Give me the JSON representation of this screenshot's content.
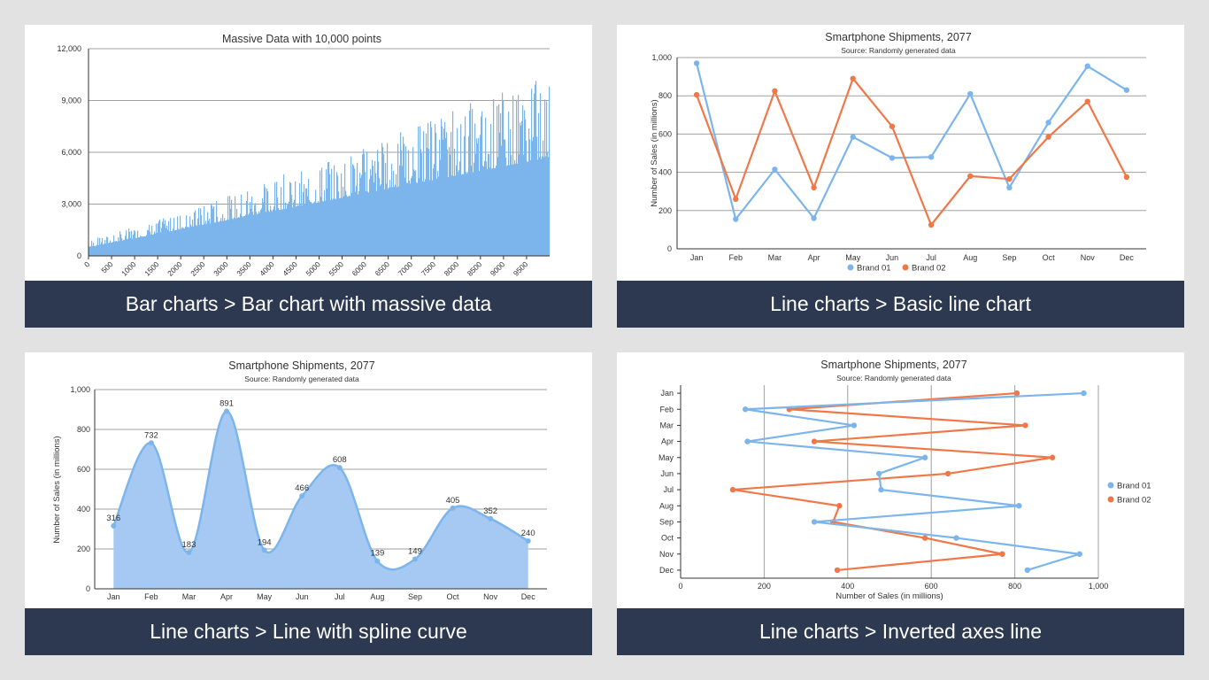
{
  "colors": {
    "background": "#e2e2e2",
    "caption_bg": "#2d3950",
    "caption_text": "#ffffff",
    "series_blue": "#7cb5ec",
    "series_orange": "#f07848",
    "area_fill": "#a5c9f2",
    "grid": "#a0a0a0",
    "axis": "#333333",
    "text": "#333333"
  },
  "captions": [
    "Bar charts > Bar chart with massive data",
    "Line charts > Basic line chart",
    "Line charts > Line with spline curve",
    "Line charts > Inverted axes line"
  ],
  "chart_data": [
    {
      "type": "bar",
      "title": "Massive Data with 10,000 points",
      "point_count": 10000,
      "x_tick_labels": [
        "0",
        "500",
        "1000",
        "1500",
        "2000",
        "2500",
        "3000",
        "3500",
        "4000",
        "4500",
        "5000",
        "5500",
        "6000",
        "6500",
        "7000",
        "7500",
        "8000",
        "8500",
        "9000",
        "9500"
      ],
      "xlim": [
        0,
        10000
      ],
      "ylim": [
        0,
        12000
      ],
      "y_tick_labels": [
        "0",
        "3,000",
        "6,000",
        "9,000",
        "12,000"
      ],
      "y_ticks": [
        0,
        3000,
        6000,
        9000,
        12000
      ],
      "trend_base": [
        [
          0,
          500
        ],
        [
          10000,
          5700
        ]
      ],
      "trend_max": [
        [
          0,
          900
        ],
        [
          2000,
          2500
        ],
        [
          5000,
          5500
        ],
        [
          7500,
          8000
        ],
        [
          10000,
          10800
        ]
      ],
      "grid": true,
      "series_color": "#7cb5ec"
    },
    {
      "type": "line",
      "title": "Smartphone Shipments, 2077",
      "subtitle": "Source: Randomly generated data",
      "ylabel": "Number of Sales (in millions)",
      "categories": [
        "Jan",
        "Feb",
        "Mar",
        "Apr",
        "May",
        "Jun",
        "Jul",
        "Aug",
        "Sep",
        "Oct",
        "Nov",
        "Dec"
      ],
      "ylim": [
        0,
        1000
      ],
      "y_ticks": [
        0,
        200,
        400,
        600,
        800,
        1000
      ],
      "y_tick_labels": [
        "0",
        "200",
        "400",
        "600",
        "800",
        "1,000"
      ],
      "series": [
        {
          "name": "Brand 01",
          "color": "#7cb5ec",
          "values": [
            970,
            155,
            415,
            160,
            585,
            475,
            480,
            810,
            320,
            660,
            955,
            830
          ]
        },
        {
          "name": "Brand 02",
          "color": "#f07848",
          "values": [
            805,
            260,
            825,
            320,
            890,
            640,
            125,
            380,
            365,
            585,
            770,
            375
          ]
        }
      ],
      "legend": "bottom-center",
      "grid": true
    },
    {
      "type": "area",
      "curve": "spline",
      "title": "Smartphone Shipments, 2077",
      "subtitle": "Source: Randomly generated data",
      "ylabel": "Number of Sales (in millions)",
      "categories": [
        "Jan",
        "Feb",
        "Mar",
        "Apr",
        "May",
        "Jun",
        "Jul",
        "Aug",
        "Sep",
        "Oct",
        "Nov",
        "Dec"
      ],
      "ylim": [
        0,
        1000
      ],
      "y_ticks": [
        0,
        200,
        400,
        600,
        800,
        1000
      ],
      "y_tick_labels": [
        "0",
        "200",
        "400",
        "600",
        "800",
        "1,000"
      ],
      "values": [
        316,
        732,
        183,
        891,
        194,
        466,
        608,
        139,
        149,
        405,
        352,
        240
      ],
      "data_labels": [
        "316",
        "732",
        "183",
        "891",
        "194",
        "466",
        "608",
        "139",
        "149",
        "405",
        "352",
        "240"
      ],
      "grid": true
    },
    {
      "type": "line",
      "inverted": true,
      "title": "Smartphone Shipments, 2077",
      "subtitle": "Source: Randomly generated data",
      "xlabel": "Number of Sales (in millions)",
      "categories": [
        "Jan",
        "Feb",
        "Mar",
        "Apr",
        "May",
        "Jun",
        "Jul",
        "Aug",
        "Sep",
        "Oct",
        "Nov",
        "Dec"
      ],
      "xlim": [
        0,
        1000
      ],
      "x_ticks": [
        0,
        200,
        400,
        600,
        800,
        1000
      ],
      "x_tick_labels": [
        "0",
        "200",
        "400",
        "600",
        "800",
        "1,000"
      ],
      "series": [
        {
          "name": "Brand 01",
          "color": "#7cb5ec",
          "values": [
            965,
            155,
            415,
            160,
            585,
            475,
            480,
            810,
            320,
            660,
            955,
            830
          ]
        },
        {
          "name": "Brand 02",
          "color": "#f07848",
          "values": [
            805,
            260,
            825,
            320,
            890,
            640,
            125,
            380,
            365,
            585,
            770,
            375
          ]
        }
      ],
      "legend": "right",
      "grid": true
    }
  ]
}
